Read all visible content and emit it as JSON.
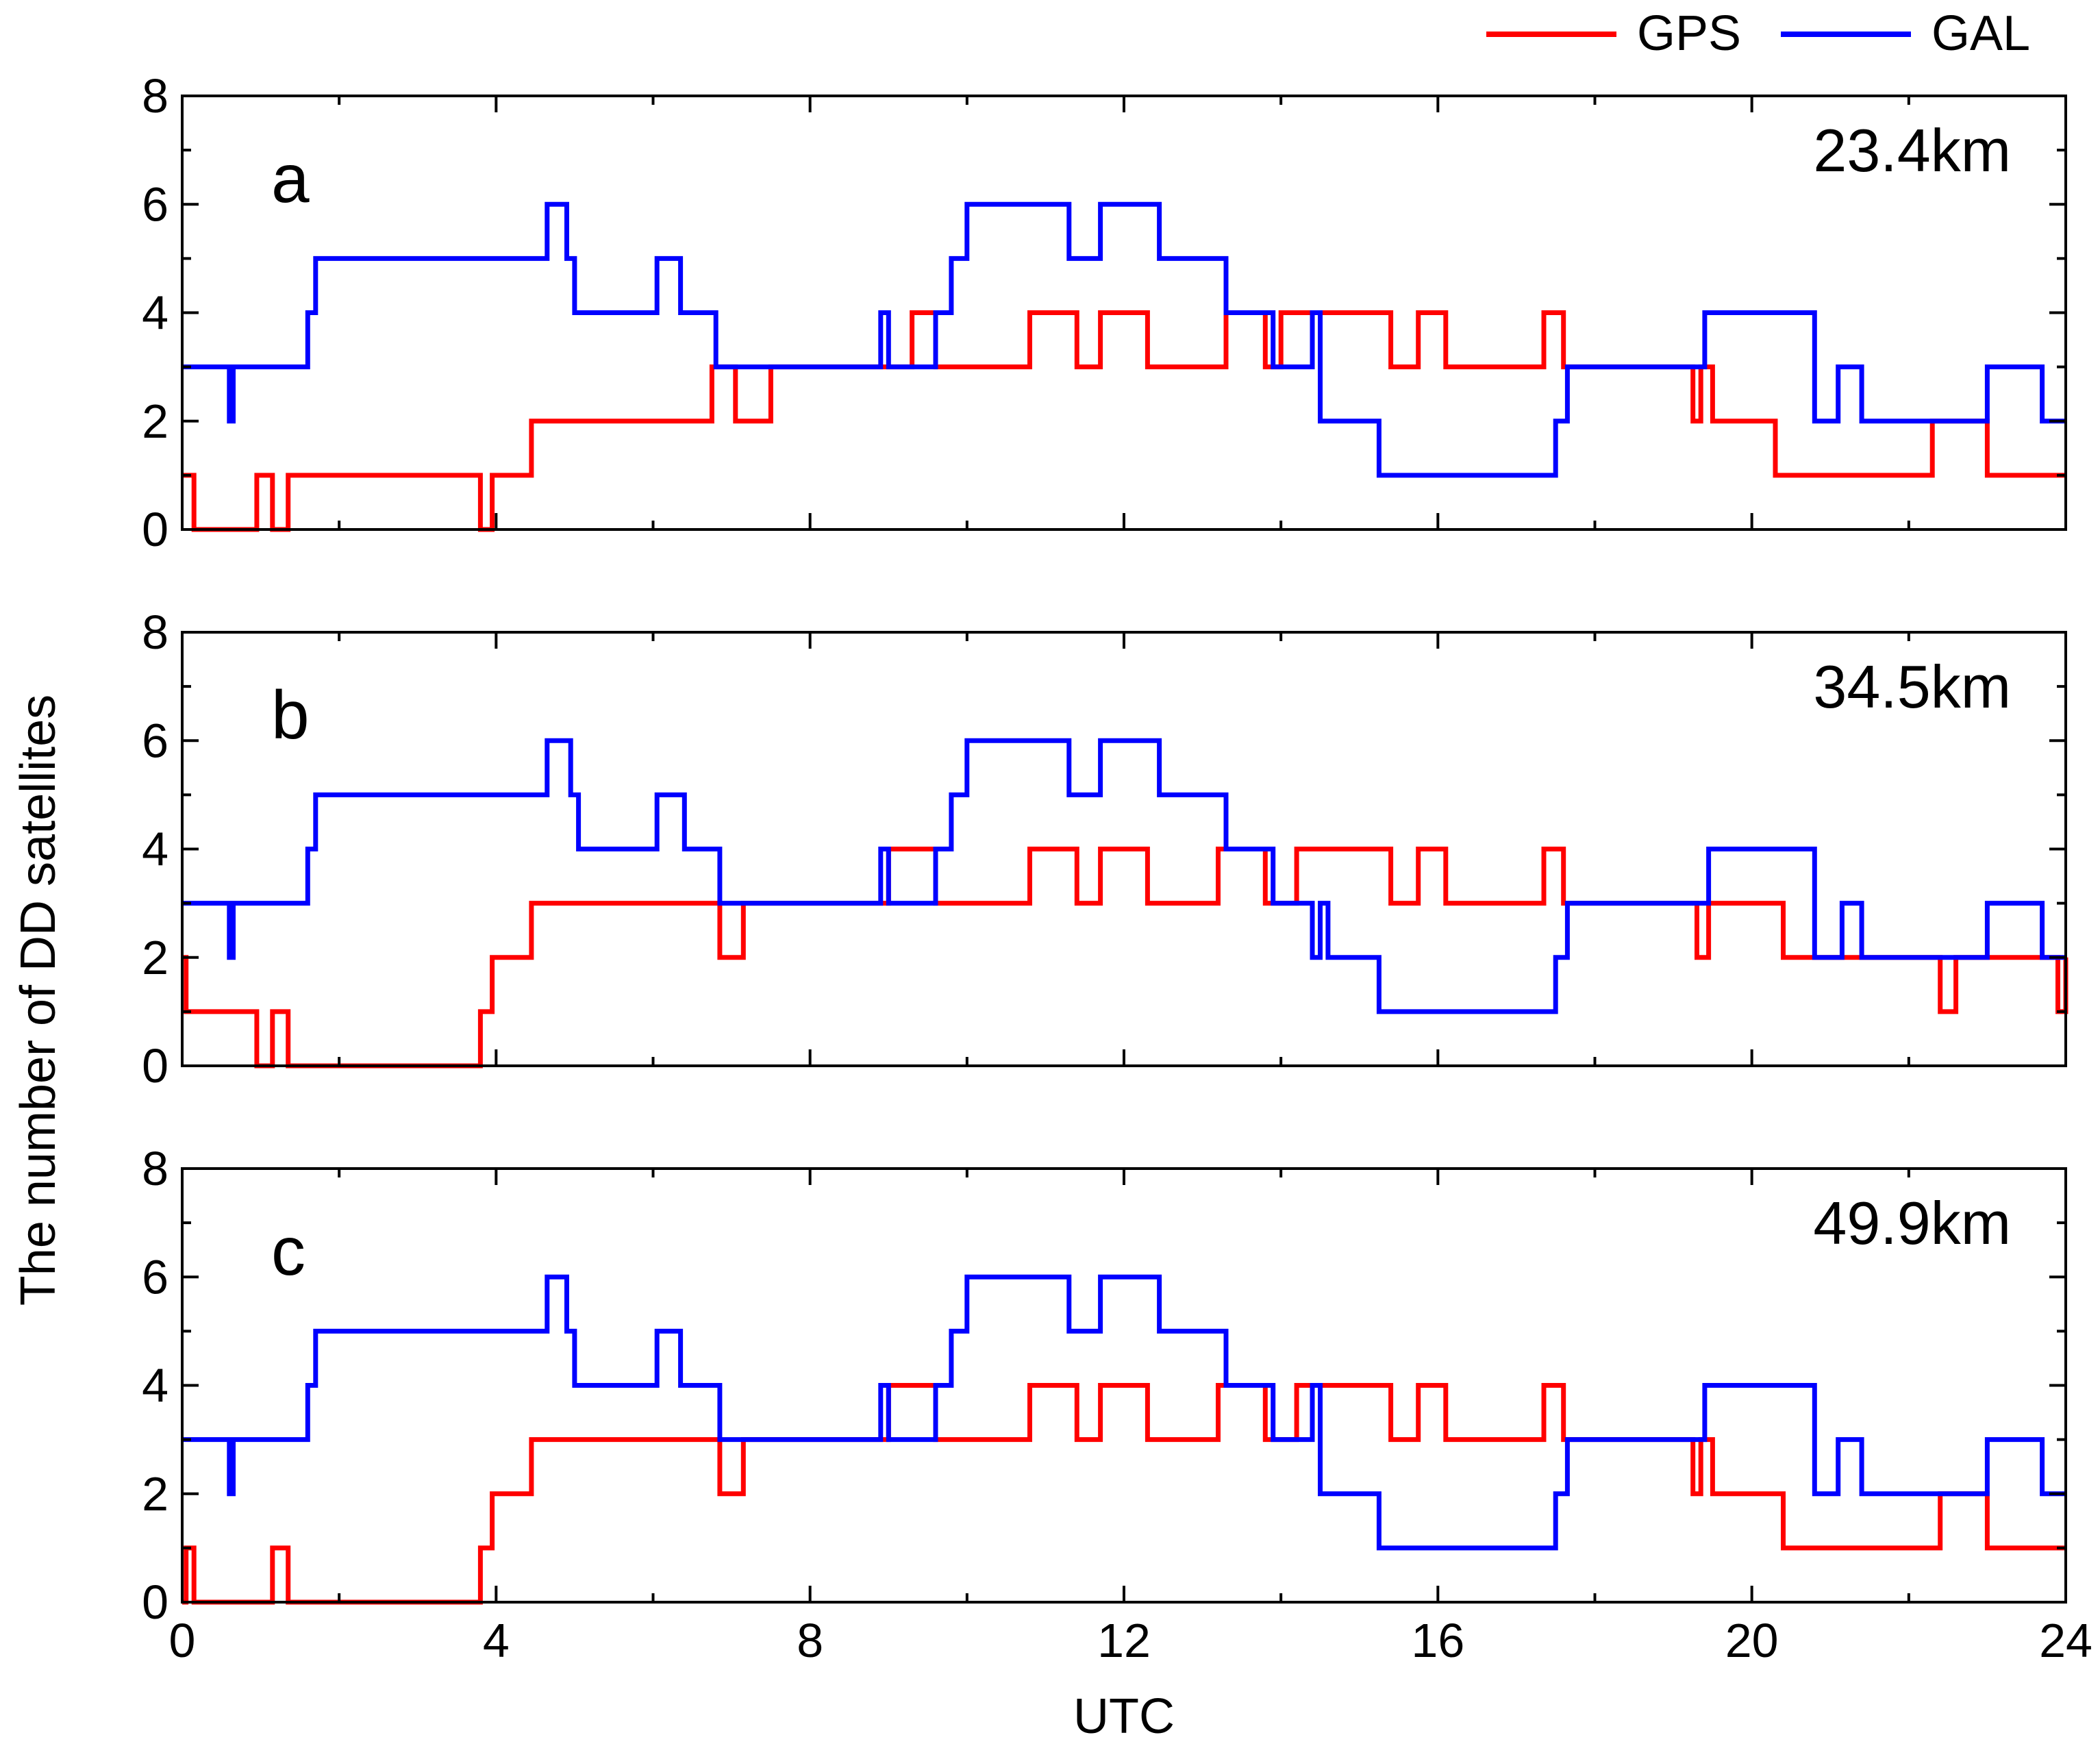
{
  "chart_data": {
    "type": "line",
    "step": true,
    "ylabel": "The number of DD satellites",
    "xlabel": "UTC",
    "xlim": [
      0,
      24
    ],
    "ylim": [
      0,
      8
    ],
    "xticks": [
      0,
      4,
      8,
      12,
      16,
      20,
      24
    ],
    "yticks": [
      0,
      2,
      4,
      6,
      8
    ],
    "legend_position": "top-right, above plots",
    "colors": {
      "GPS": "#ff0000",
      "GAL": "#0000ff"
    },
    "panels": [
      {
        "label": "a",
        "annotation": "23.4km",
        "series": [
          {
            "name": "GPS",
            "x": [
              0,
              0.15,
              0.95,
              1.15,
              1.35,
              3.8,
              3.95,
              4.45,
              6.75,
              7.05,
              7.5,
              8.9,
              9.3,
              9.6,
              10.8,
              11.4,
              11.7,
              12.3,
              13.3,
              13.8,
              14.0,
              14.5,
              15.4,
              15.75,
              16.1,
              17.35,
              17.6,
              19.0,
              19.25,
              19.35,
              19.5,
              20.3,
              22.3,
              22.5,
              23.0,
              24
            ],
            "y": [
              1,
              0,
              1,
              0,
              1,
              0,
              1,
              2,
              3,
              2,
              3,
              3,
              4,
              3,
              4,
              3,
              4,
              3,
              4,
              3,
              4,
              4,
              3,
              4,
              3,
              4,
              3,
              3,
              2,
              3,
              2,
              1,
              2,
              2,
              1,
              1
            ]
          },
          {
            "name": "GAL",
            "x": [
              0,
              0.6,
              0.65,
              1.6,
              1.7,
              4.65,
              4.9,
              5.0,
              6.05,
              6.35,
              6.8,
              8.9,
              9.0,
              9.6,
              9.8,
              10.0,
              11.3,
              11.7,
              12.45,
              13.3,
              13.9,
              14.0,
              14.4,
              14.5,
              15.25,
              17.5,
              17.65,
              19.0,
              19.4,
              20.8,
              21.1,
              21.4,
              22.5,
              23.0,
              23.7,
              24
            ],
            "y": [
              3,
              2,
              3,
              4,
              5,
              6,
              5,
              4,
              5,
              4,
              3,
              4,
              3,
              4,
              5,
              6,
              5,
              6,
              5,
              4,
              3,
              3,
              4,
              2,
              1,
              2,
              3,
              3,
              4,
              2,
              3,
              2,
              2,
              3,
              2,
              2
            ]
          }
        ]
      },
      {
        "label": "b",
        "annotation": "34.5km",
        "series": [
          {
            "name": "GPS",
            "x": [
              0,
              0.05,
              0.95,
              1.15,
              1.35,
              3.8,
              3.95,
              4.45,
              6.85,
              7.15,
              8.9,
              9.0,
              9.6,
              10.8,
              11.4,
              11.7,
              12.3,
              13.2,
              13.8,
              14.0,
              14.2,
              15.4,
              15.75,
              16.1,
              17.35,
              17.6,
              19.0,
              19.3,
              19.45,
              20.4,
              22.4,
              22.6,
              23.0,
              23.9,
              24
            ],
            "y": [
              2,
              1,
              0,
              1,
              0,
              1,
              2,
              3,
              2,
              3,
              3,
              4,
              3,
              4,
              3,
              4,
              3,
              4,
              3,
              3,
              4,
              3,
              4,
              3,
              4,
              3,
              3,
              2,
              3,
              2,
              1,
              2,
              2,
              1,
              2
            ]
          },
          {
            "name": "GAL",
            "x": [
              0,
              0.6,
              0.65,
              1.6,
              1.7,
              4.65,
              4.95,
              5.05,
              6.05,
              6.4,
              6.85,
              8.9,
              9.0,
              9.6,
              9.8,
              10.0,
              11.3,
              11.7,
              12.45,
              13.3,
              13.9,
              14.0,
              14.4,
              14.5,
              14.6,
              15.25,
              17.5,
              17.65,
              19.0,
              19.45,
              20.8,
              21.15,
              21.4,
              23.0,
              23.7,
              24
            ],
            "y": [
              3,
              2,
              3,
              4,
              5,
              6,
              5,
              4,
              5,
              4,
              3,
              4,
              3,
              4,
              5,
              6,
              5,
              6,
              5,
              4,
              3,
              3,
              2,
              3,
              2,
              1,
              2,
              3,
              3,
              4,
              2,
              3,
              2,
              3,
              2,
              2
            ]
          }
        ]
      },
      {
        "label": "c",
        "annotation": "49.9km",
        "series": [
          {
            "name": "GPS",
            "x": [
              0,
              0.05,
              0.15,
              1.15,
              1.35,
              3.8,
              3.95,
              4.45,
              6.85,
              7.15,
              8.9,
              9.0,
              9.6,
              10.8,
              11.4,
              11.7,
              12.3,
              13.2,
              13.8,
              14.0,
              14.2,
              15.4,
              15.75,
              16.1,
              17.35,
              17.6,
              19.0,
              19.25,
              19.35,
              19.5,
              20.4,
              22.4,
              22.6,
              23.0,
              24
            ],
            "y": [
              0,
              1,
              0,
              1,
              0,
              1,
              2,
              3,
              2,
              3,
              3,
              4,
              3,
              4,
              3,
              4,
              3,
              4,
              3,
              3,
              4,
              3,
              4,
              3,
              4,
              3,
              3,
              2,
              3,
              2,
              1,
              2,
              2,
              1,
              1
            ]
          },
          {
            "name": "GAL",
            "x": [
              0,
              0.6,
              0.65,
              1.6,
              1.7,
              4.65,
              4.9,
              5.0,
              6.05,
              6.35,
              6.85,
              8.9,
              9.0,
              9.6,
              9.8,
              10.0,
              11.3,
              11.7,
              12.45,
              13.3,
              13.9,
              14.0,
              14.4,
              14.5,
              15.25,
              17.5,
              17.65,
              19.0,
              19.4,
              20.8,
              21.1,
              21.4,
              22.5,
              23.0,
              23.7,
              24
            ],
            "y": [
              3,
              2,
              3,
              4,
              5,
              6,
              5,
              4,
              5,
              4,
              3,
              4,
              3,
              4,
              5,
              6,
              5,
              6,
              5,
              4,
              3,
              3,
              4,
              2,
              1,
              2,
              3,
              3,
              4,
              2,
              3,
              2,
              2,
              3,
              2,
              2
            ]
          }
        ]
      }
    ]
  }
}
